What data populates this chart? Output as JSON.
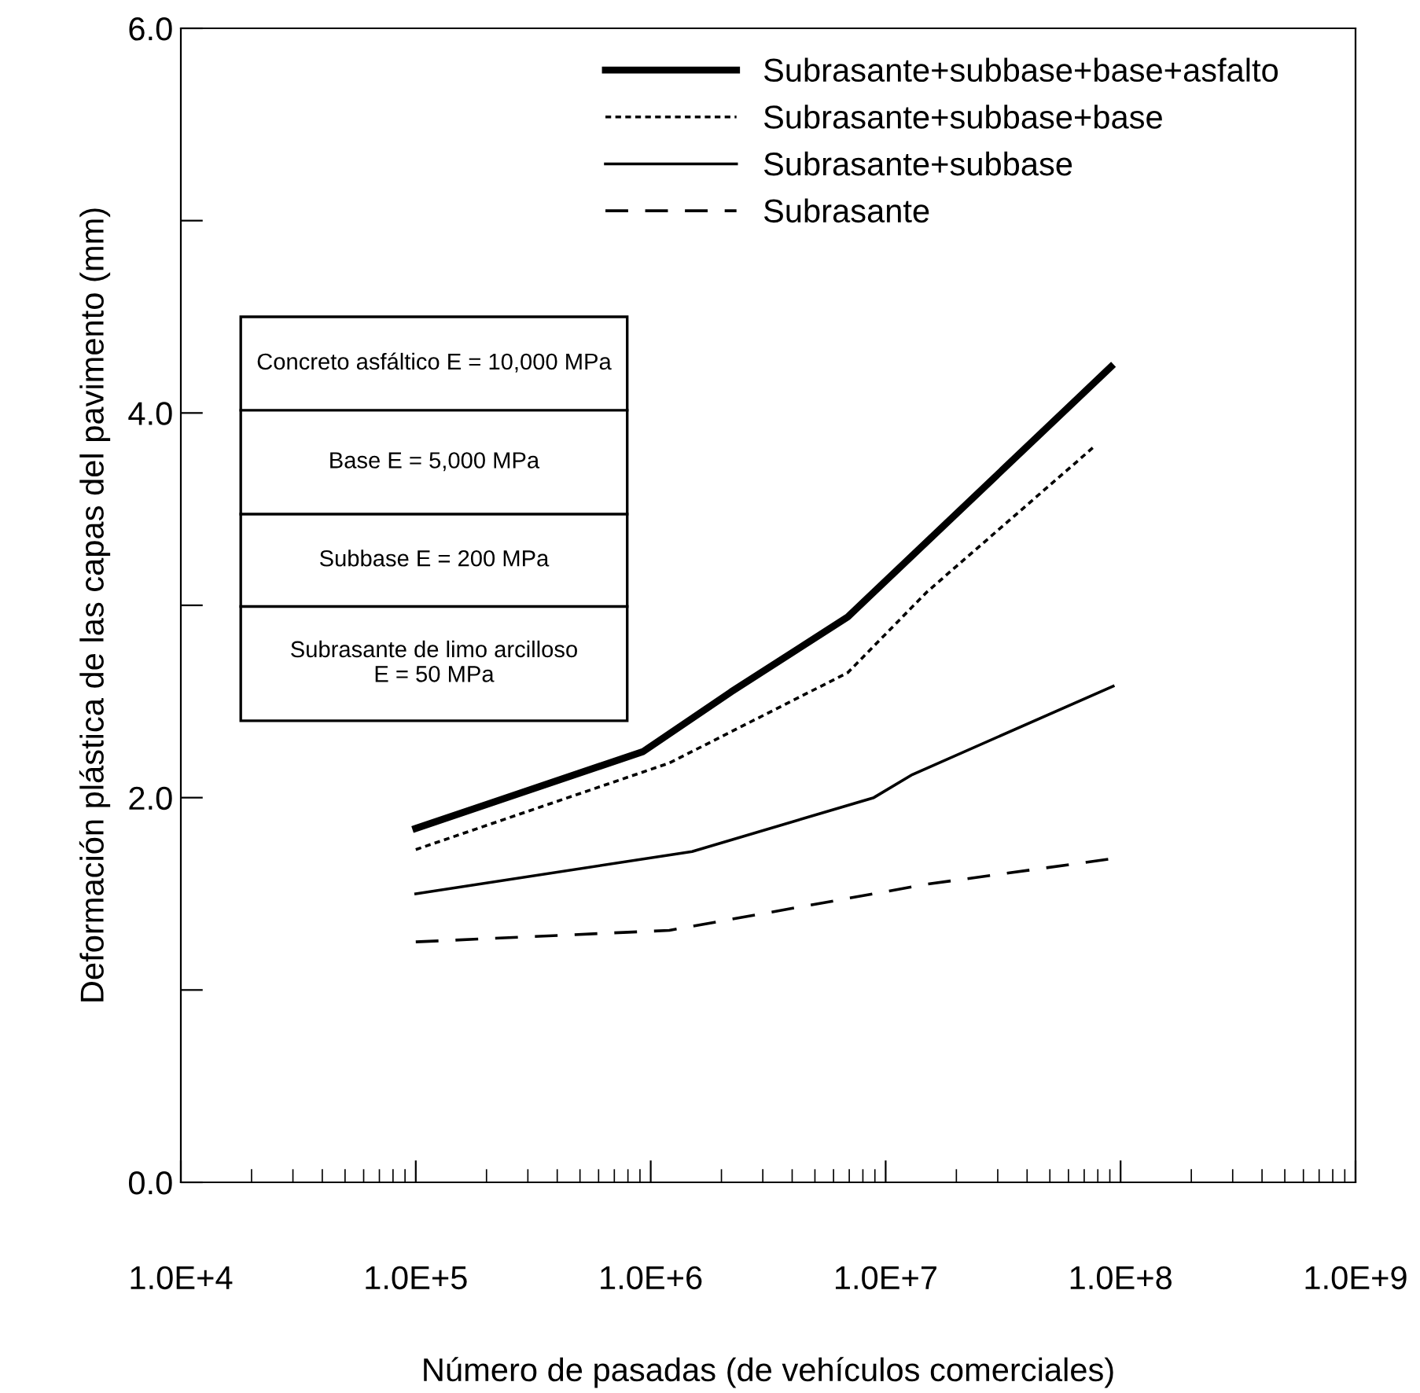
{
  "chart_data": {
    "type": "line",
    "xlabel": "Número de pasadas (de vehículos comerciales)",
    "ylabel": "Deformación plástica de las capas del pavimento (mm)",
    "log": "x",
    "xlim": [
      10000,
      1000000000
    ],
    "ylim": [
      0,
      6
    ],
    "xticks": [
      {
        "value": 10000,
        "label": "1.0E+4"
      },
      {
        "value": 100000,
        "label": "1.0E+5"
      },
      {
        "value": 1000000,
        "label": "1.0E+6"
      },
      {
        "value": 10000000,
        "label": "1.0E+7"
      },
      {
        "value": 100000000,
        "label": "1.0E+8"
      },
      {
        "value": 1000000000,
        "label": "1.0E+9"
      }
    ],
    "yticks": [
      {
        "value": 0,
        "label": "0.0"
      },
      {
        "value": 1,
        "label": null
      },
      {
        "value": 2,
        "label": "2.0"
      },
      {
        "value": 3,
        "label": null
      },
      {
        "value": 4,
        "label": "4.0"
      },
      {
        "value": 5,
        "label": null
      },
      {
        "value": 6,
        "label": "6.0"
      }
    ],
    "grid": false,
    "legend": "top right",
    "marker": "none",
    "series": [
      {
        "name": "Subrasante+subbase+base+asfalto",
        "color": "#000000",
        "line_style": "solid",
        "x": [
          100000,
          930000,
          2200000,
          6900000,
          91000000
        ],
        "values": [
          1.84,
          2.24,
          2.55,
          2.94,
          4.24
        ]
      },
      {
        "name": "Subrasante+subbase+base",
        "color": "#000000",
        "line_style": "dotted",
        "x": [
          100000,
          1200000,
          6900000,
          15000000,
          78000000
        ],
        "values": [
          1.73,
          2.18,
          2.65,
          3.07,
          3.83
        ]
      },
      {
        "name": "Subrasante+subbase",
        "color": "#000000",
        "line_style": "solid",
        "x": [
          100000,
          1500000,
          8900000,
          13000000,
          93000000
        ],
        "values": [
          1.5,
          1.72,
          2.0,
          2.12,
          2.58
        ]
      },
      {
        "name": "Subrasante",
        "color": "#000000",
        "line_style": "dashed",
        "x": [
          100000,
          1200000,
          15000000,
          89000000
        ],
        "values": [
          1.25,
          1.31,
          1.55,
          1.68
        ]
      }
    ],
    "annotations": [
      "Concreto asfáltico E = 10,000 MPa",
      "Base E = 5,000 MPa",
      "Subbase E = 200 MPa",
      "Subrasante de limo arcilloso\nE = 50 MPa"
    ]
  }
}
